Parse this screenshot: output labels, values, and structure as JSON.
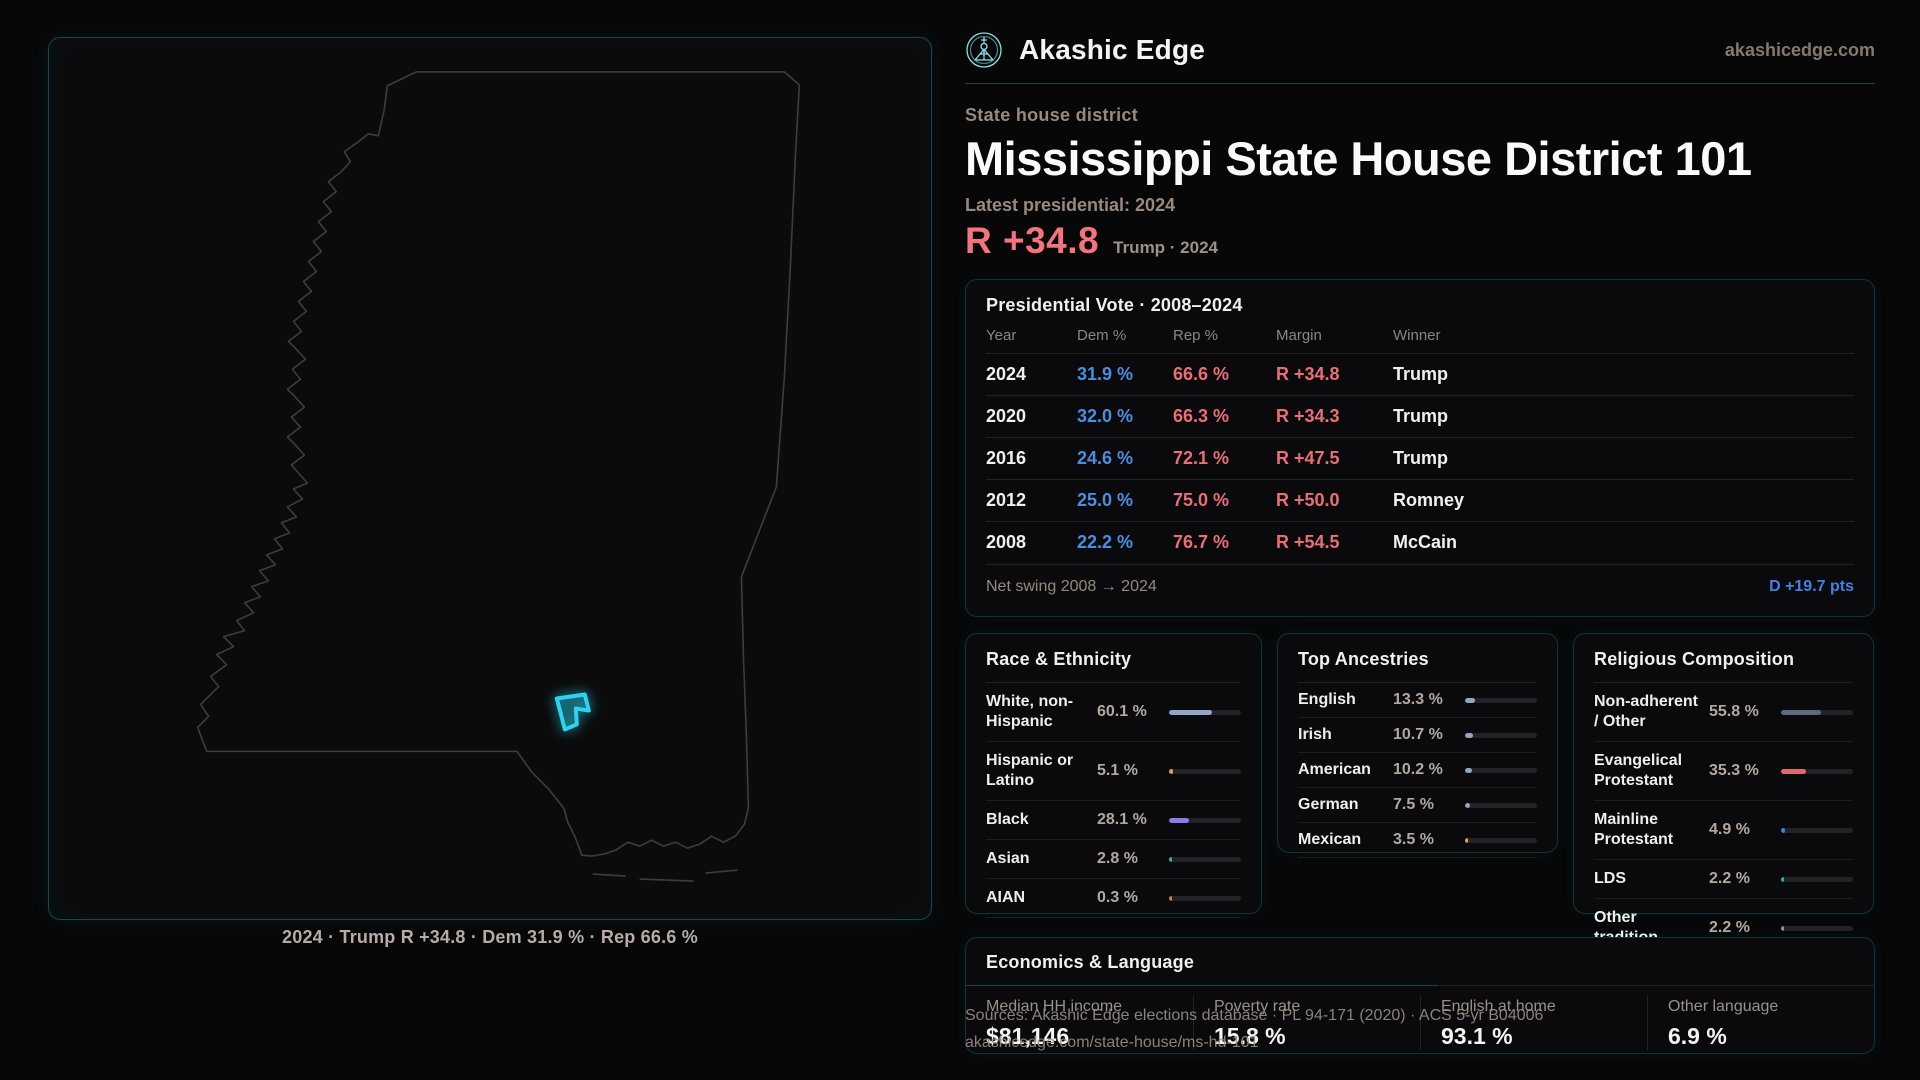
{
  "colors": {
    "accent": "#2dd4ee",
    "dem_blue": "#4a8ee0",
    "rep_red": "#e96e76",
    "rep_bright": "#f3747f",
    "swing_blue": "#3f82e6"
  },
  "brand": {
    "name": "Akashic Edge",
    "domain": "akashicedge.com",
    "logo_icon": "akashic-emblem-icon"
  },
  "page": {
    "kicker": "State house district",
    "title": "Mississippi State House District 101",
    "latest_label": "Latest presidential: 2024",
    "headline_margin": "R +34.8",
    "headline_context": "Trump · 2024"
  },
  "map": {
    "caption": "2024 · Trump R +34.8 · Dem 31.9 % · Rep 66.6 %",
    "state": "Mississippi",
    "district_marker": "district-101-highlight"
  },
  "vote_table": {
    "title": "Presidential Vote · 2008–2024",
    "columns": [
      "Year",
      "Dem %",
      "Rep %",
      "Margin",
      "Winner"
    ],
    "rows": [
      {
        "year": "2024",
        "dem": "31.9 %",
        "rep": "66.6 %",
        "margin": "R +34.8",
        "winner": "Trump"
      },
      {
        "year": "2020",
        "dem": "32.0 %",
        "rep": "66.3 %",
        "margin": "R +34.3",
        "winner": "Trump"
      },
      {
        "year": "2016",
        "dem": "24.6 %",
        "rep": "72.1 %",
        "margin": "R +47.5",
        "winner": "Trump"
      },
      {
        "year": "2012",
        "dem": "25.0 %",
        "rep": "75.0 %",
        "margin": "R +50.0",
        "winner": "Romney"
      },
      {
        "year": "2008",
        "dem": "22.2 %",
        "rep": "76.7 %",
        "margin": "R +54.5",
        "winner": "McCain"
      }
    ],
    "net_swing_label": "Net swing 2008 → 2024",
    "net_swing_value": "D +19.7 pts"
  },
  "race": {
    "title": "Race & Ethnicity",
    "rows": [
      {
        "label": "White, non-Hispanic",
        "value": "60.1 %",
        "pct": 60.1,
        "color": "#91a6c4"
      },
      {
        "label": "Hispanic or Latino",
        "value": "5.1 %",
        "pct": 5.1,
        "color": "#e6a23c"
      },
      {
        "label": "Black",
        "value": "28.1 %",
        "pct": 28.1,
        "color": "#8d7bec"
      },
      {
        "label": "Asian",
        "value": "2.8 %",
        "pct": 2.8,
        "color": "#25b99a"
      },
      {
        "label": "AIAN",
        "value": "0.3 %",
        "pct": 0.3,
        "color": "#e0763a"
      }
    ]
  },
  "ancestries": {
    "title": "Top Ancestries",
    "rows": [
      {
        "label": "English",
        "value": "13.3 %",
        "pct": 13.3,
        "color": "#8fa7c4"
      },
      {
        "label": "Irish",
        "value": "10.7 %",
        "pct": 10.7,
        "color": "#8fa7c4"
      },
      {
        "label": "American",
        "value": "10.2 %",
        "pct": 10.2,
        "color": "#8fa7c4"
      },
      {
        "label": "German",
        "value": "7.5 %",
        "pct": 7.5,
        "color": "#8fa7c4"
      },
      {
        "label": "Mexican",
        "value": "3.5 %",
        "pct": 3.5,
        "color": "#e6a23c"
      }
    ]
  },
  "religion": {
    "title": "Religious Composition",
    "rows": [
      {
        "label": "Non-adherent / Other",
        "value": "55.8 %",
        "pct": 55.8,
        "color": "#5c6a7d"
      },
      {
        "label": "Evangelical Protestant",
        "value": "35.3 %",
        "pct": 35.3,
        "color": "#e06a6a"
      },
      {
        "label": "Mainline Protestant",
        "value": "4.9 %",
        "pct": 4.9,
        "color": "#3b7fe0"
      },
      {
        "label": "LDS",
        "value": "2.2 %",
        "pct": 2.2,
        "color": "#22b8a8"
      },
      {
        "label": "Other tradition",
        "value": "2.2 %",
        "pct": 2.2,
        "color": "#8e949c"
      }
    ]
  },
  "economics": {
    "title": "Economics & Language",
    "stats": [
      {
        "label": "Median HH income",
        "value": "$81,146"
      },
      {
        "label": "Poverty rate",
        "value": "15.8 %"
      },
      {
        "label": "English at home",
        "value": "93.1 %"
      },
      {
        "label": "Other language",
        "value": "6.9 %"
      }
    ]
  },
  "footer": {
    "sources_line1": "Sources: Akashic Edge elections database · PL 94-171 (2020) · ACS 5-yr B04006",
    "sources_line2": "akashicedge.com/state-house/ms-hd-101"
  }
}
